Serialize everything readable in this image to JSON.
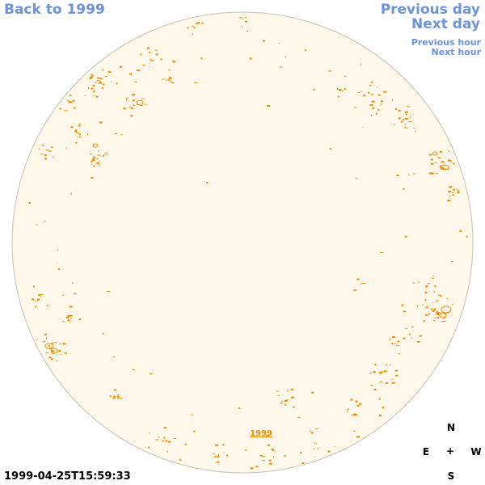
{
  "nav": {
    "back_label": "Back to 1999",
    "previous_day_label": "Previous day",
    "next_day_label": "Next day",
    "previous_hour_label": "Previous hour",
    "next_hour_label": "Next hour"
  },
  "disk": {
    "fill_color": "#fdf8ea",
    "edge_color": "#c8c2b4",
    "contour_color": "#f08c00"
  },
  "year_link": "1999",
  "timestamp": "1999-04-25T15:59:33",
  "compass": {
    "north": "N",
    "south": "S",
    "east": "E",
    "west": "W",
    "center": "+"
  }
}
